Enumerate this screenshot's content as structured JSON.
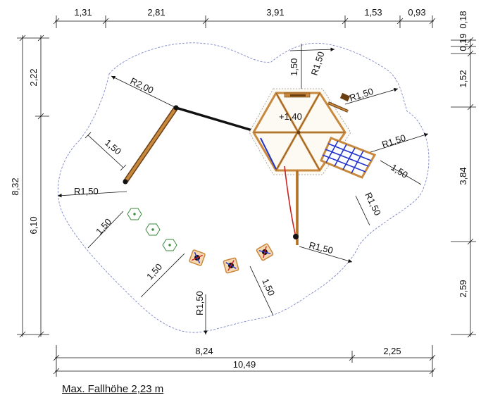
{
  "top_dims": [
    "1,31",
    "2,81",
    "3,91",
    "1,53",
    "0,93"
  ],
  "right_dims": [
    "0,18",
    "0,19",
    "1,52",
    "3,84",
    "2,59"
  ],
  "left_dims": [
    "2,22",
    "6,10",
    "8,32"
  ],
  "bottom_dims": [
    "8,24",
    "2,25",
    "10,49"
  ],
  "radius_labels": [
    "R2,00",
    "R1,50",
    "R1,50",
    "R1,50",
    "R1,50",
    "R1,50",
    "R1,50"
  ],
  "distance_labels": [
    "1,50",
    "1,50",
    "1,50",
    "1,50",
    "1,50",
    "1,50"
  ],
  "platform_height": "+1,40",
  "caption": "Max. Fallhöhe 2,23 m",
  "colors": {
    "line": "#111111",
    "boundary": "#7d86c8",
    "timber": "#c8893e",
    "timber_dark": "#6b3f12",
    "net": "#2233cc",
    "slide_red": "#cc2222",
    "stepping_green": "#3a8a3a"
  }
}
